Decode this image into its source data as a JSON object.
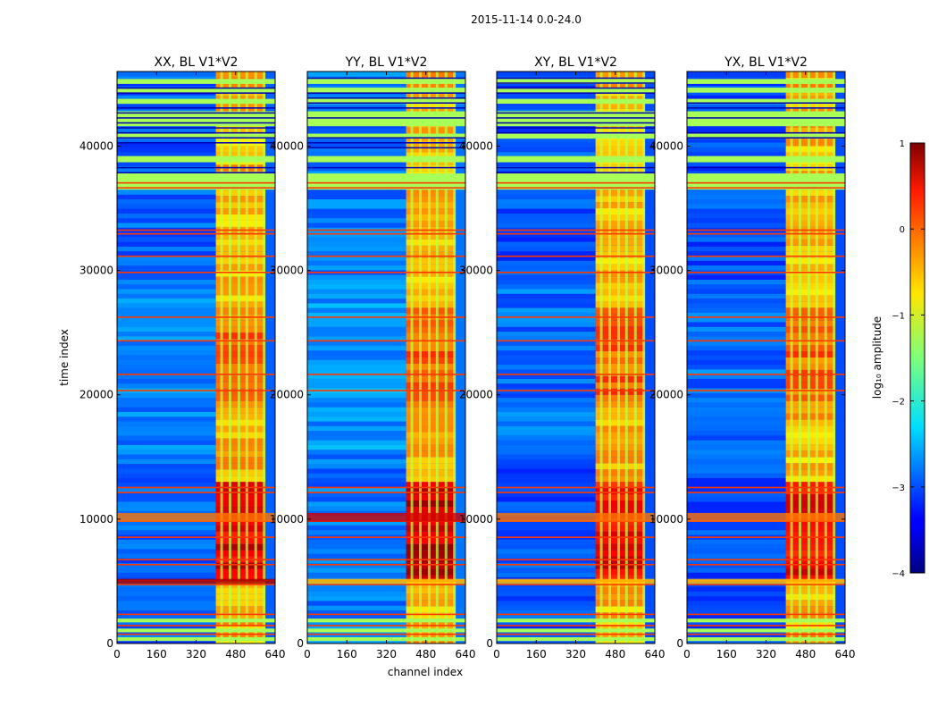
{
  "figure": {
    "suptitle": "2015-11-14 0.0-24.0",
    "xlabel": "channel index",
    "ylabel": "time index"
  },
  "colorbar": {
    "label": "log₁₀ amplitude",
    "range": [
      -4,
      1
    ],
    "ticks": [
      1,
      0,
      -1,
      -2,
      -3,
      -4
    ],
    "tick_labels": [
      "1",
      "0",
      "−1",
      "−2",
      "−3",
      "−4"
    ],
    "colormap": "jet"
  },
  "chart_data": [
    {
      "type": "heatmap",
      "title": "XX, BL V1*V2",
      "xlabel": "channel index",
      "ylabel": "time index",
      "xlim": [
        0,
        640
      ],
      "ylim": [
        0,
        46000
      ],
      "x_ticks": [
        0,
        160,
        320,
        480,
        640
      ],
      "x_tick_labels": [
        "0",
        "160",
        "320",
        "480",
        "640"
      ],
      "y_ticks": [
        0,
        10000,
        20000,
        30000,
        40000
      ],
      "y_tick_labels": [
        "0",
        "10000",
        "20000",
        "30000",
        "40000"
      ],
      "values_log10": {
        "background_channels_0_400": -2.9,
        "flagged_rows": -1.3,
        "band_channels_400_600": -0.5,
        "peak_band_rows_4500_13000": 0.8
      }
    },
    {
      "type": "heatmap",
      "title": "YY, BL V1*V2",
      "xlabel": "channel index",
      "ylabel": "time index",
      "xlim": [
        0,
        640
      ],
      "ylim": [
        0,
        46000
      ],
      "x_ticks": [
        0,
        160,
        320,
        480,
        640
      ],
      "x_tick_labels": [
        "0",
        "160",
        "320",
        "480",
        "640"
      ],
      "y_ticks": [
        0,
        10000,
        20000,
        30000,
        40000
      ],
      "y_tick_labels": [
        "0",
        "10000",
        "20000",
        "30000",
        "40000"
      ],
      "values_log10": {
        "background_channels_0_400": -2.8,
        "flagged_rows": -1.3,
        "band_channels_400_600": -0.5,
        "peak_band_rows_4500_13000": 0.9
      }
    },
    {
      "type": "heatmap",
      "title": "XY, BL V1*V2",
      "xlabel": "channel index",
      "ylabel": "time index",
      "xlim": [
        0,
        640
      ],
      "ylim": [
        0,
        46000
      ],
      "x_ticks": [
        0,
        160,
        320,
        480,
        640
      ],
      "x_tick_labels": [
        "0",
        "160",
        "320",
        "480",
        "640"
      ],
      "y_ticks": [
        0,
        10000,
        20000,
        30000,
        40000
      ],
      "y_tick_labels": [
        "0",
        "10000",
        "20000",
        "30000",
        "40000"
      ],
      "values_log10": {
        "background_channels_0_400": -3.0,
        "flagged_rows": -1.3,
        "band_channels_400_600": -0.5,
        "peak_band_rows_4500_13000": 0.7
      }
    },
    {
      "type": "heatmap",
      "title": "YX, BL V1*V2",
      "xlabel": "channel index",
      "ylabel": "time index",
      "xlim": [
        0,
        640
      ],
      "ylim": [
        0,
        46000
      ],
      "x_ticks": [
        0,
        160,
        320,
        480,
        640
      ],
      "x_tick_labels": [
        "0",
        "160",
        "320",
        "480",
        "640"
      ],
      "y_ticks": [
        0,
        10000,
        20000,
        30000,
        40000
      ],
      "y_tick_labels": [
        "0",
        "10000",
        "20000",
        "30000",
        "40000"
      ],
      "values_log10": {
        "background_channels_0_400": -3.0,
        "flagged_rows": -1.3,
        "band_channels_400_600": -0.5,
        "peak_band_rows_4500_13000": 0.7
      }
    }
  ]
}
